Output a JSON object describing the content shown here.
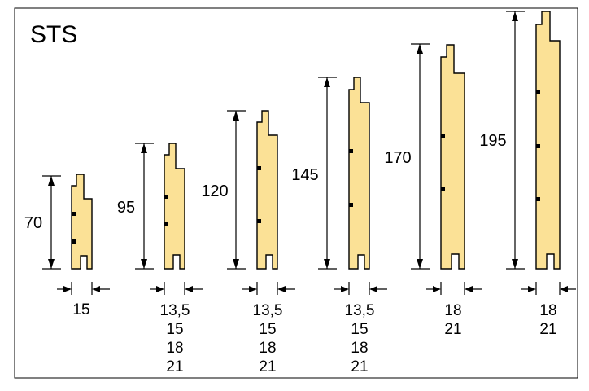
{
  "title": "STS",
  "profiles": [
    {
      "height": "70",
      "widths": [
        "15"
      ]
    },
    {
      "height": "95",
      "widths": [
        "13,5",
        "15",
        "18",
        "21"
      ]
    },
    {
      "height": "120",
      "widths": [
        "13,5",
        "15",
        "18",
        "21"
      ]
    },
    {
      "height": "145",
      "widths": [
        "13,5",
        "15",
        "18",
        "21"
      ]
    },
    {
      "height": "170",
      "widths": [
        "18",
        "21"
      ]
    },
    {
      "height": "195",
      "widths": [
        "18",
        "21"
      ]
    }
  ],
  "colors": {
    "board_fill": "#fbe196",
    "outline": "#000000",
    "frame": "#000000",
    "background": "#ffffff"
  }
}
